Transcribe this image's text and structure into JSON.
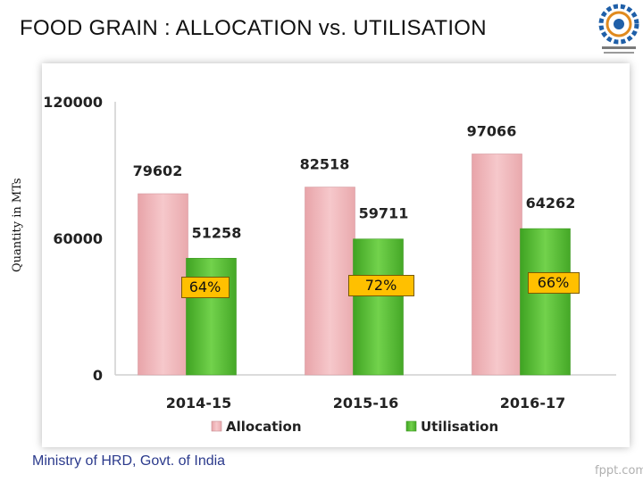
{
  "slide": {
    "title": "FOOD GRAIN : ALLOCATION vs. UTILISATION",
    "footer": "Ministry of HRD, Govt. of India",
    "watermark": "fppt.com",
    "logo_icon": "gear-emblem-icon"
  },
  "chart_data": {
    "type": "bar",
    "title": "",
    "xlabel": "",
    "ylabel": "Quantity in MTs",
    "categories": [
      "2014-15",
      "2015-16",
      "2016-17"
    ],
    "series": [
      {
        "name": "Allocation",
        "values": [
          79602,
          82518,
          97066
        ],
        "color": "#f2b8bc"
      },
      {
        "name": "Utilisation",
        "values": [
          51258,
          59711,
          64262
        ],
        "color": "#5ec23a"
      }
    ],
    "ylim": [
      0,
      120000
    ],
    "yticks": [
      "0",
      "60000",
      "120000"
    ],
    "utilisation_percent": [
      "64%",
      "72%",
      "66%"
    ],
    "legend_position": "bottom",
    "grid": false
  }
}
